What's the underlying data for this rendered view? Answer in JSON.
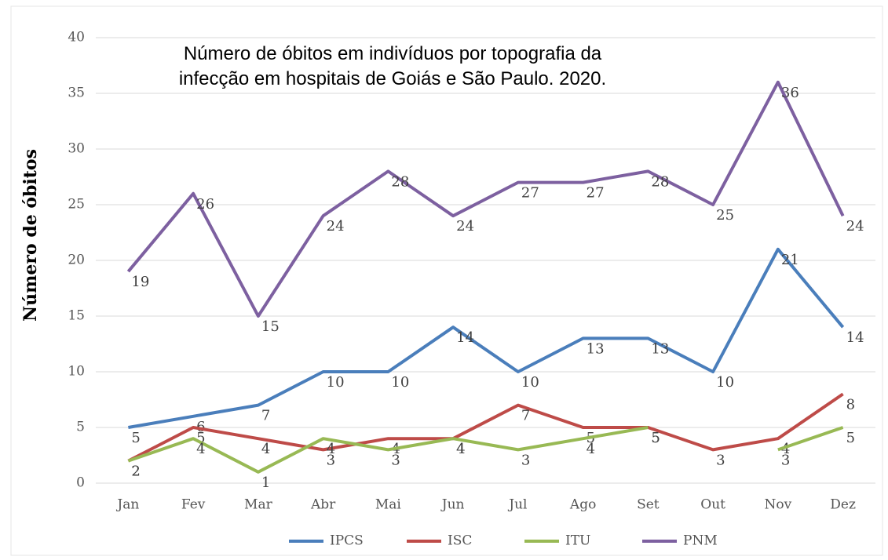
{
  "chart_data": {
    "type": "line",
    "title": [
      "Número de óbitos em indivíduos por topografia da",
      "infecção em hospitais de Goiás e São Paulo. 2020."
    ],
    "y_label": "Número de óbitos",
    "categories": [
      "Jan",
      "Fev",
      "Mar",
      "Abr",
      "Mai",
      "Jun",
      "Jul",
      "Ago",
      "Set",
      "Out",
      "Nov",
      "Dez"
    ],
    "series": [
      {
        "name": "IPCS",
        "color": "#4a7ebb",
        "values": [
          5,
          6,
          7,
          10,
          10,
          14,
          10,
          13,
          13,
          10,
          21,
          14
        ]
      },
      {
        "name": "ISC",
        "color": "#be4b48",
        "values": [
          2,
          5,
          4,
          3,
          4,
          4,
          7,
          5,
          5,
          3,
          4,
          8
        ]
      },
      {
        "name": "ITU",
        "color": "#98b954",
        "values": [
          2,
          4,
          1,
          4,
          3,
          4,
          3,
          4,
          5,
          null,
          3,
          5
        ]
      },
      {
        "name": "PNM",
        "color": "#7d60a0",
        "values": [
          19,
          26,
          15,
          24,
          28,
          24,
          27,
          27,
          28,
          25,
          36,
          24
        ]
      }
    ],
    "ylim": [
      0,
      40
    ],
    "yticks": [
      0,
      5,
      10,
      15,
      20,
      25,
      30,
      35,
      40
    ],
    "grid": true,
    "legend": "bottom"
  }
}
